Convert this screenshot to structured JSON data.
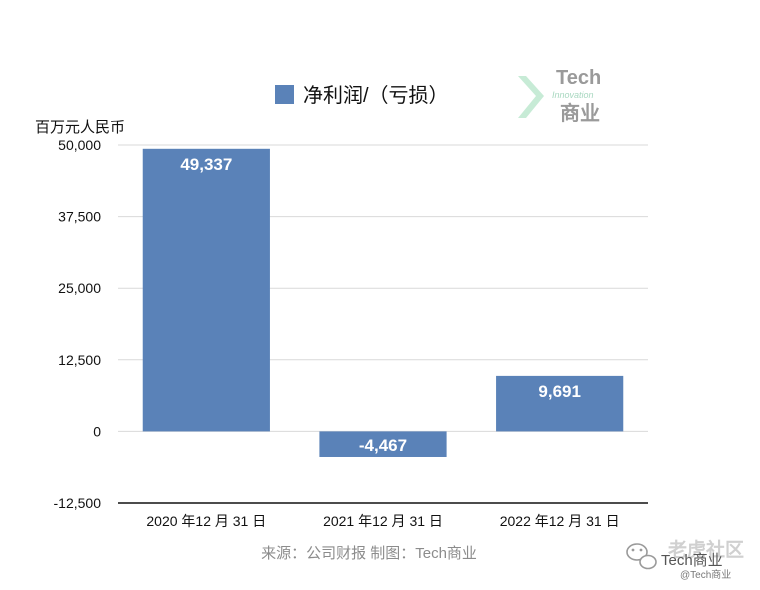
{
  "chart_data": {
    "type": "bar",
    "ylabel": "百万元人民币",
    "categories": [
      "2020 年12 月 31 日",
      "2021 年12 月 31 日",
      "2022 年12 月 31 日"
    ],
    "series": [
      {
        "name": "净利润/（亏损）",
        "values": [
          49337,
          -4467,
          9691
        ],
        "color": "#5a82b8"
      }
    ],
    "data_labels": [
      "49,337",
      "-4,467",
      "9,691"
    ],
    "ylim": [
      -12500,
      50000
    ],
    "yticks": [
      50000,
      37500,
      25000,
      12500,
      0,
      -12500
    ],
    "ytick_labels": [
      "50,000",
      "37,500",
      "25,000",
      "12,500",
      "0",
      "-12,500"
    ],
    "grid": true,
    "legend_position": "top"
  },
  "source_note": "来源：公司财报 制图：Tech商业",
  "watermark_logo": {
    "line1": "Tech",
    "line2": "Innovation",
    "line3": "商业"
  },
  "watermark_corner": {
    "main": "老虎社区",
    "sub": "Tech商业",
    "handle": "@Tech商业"
  }
}
